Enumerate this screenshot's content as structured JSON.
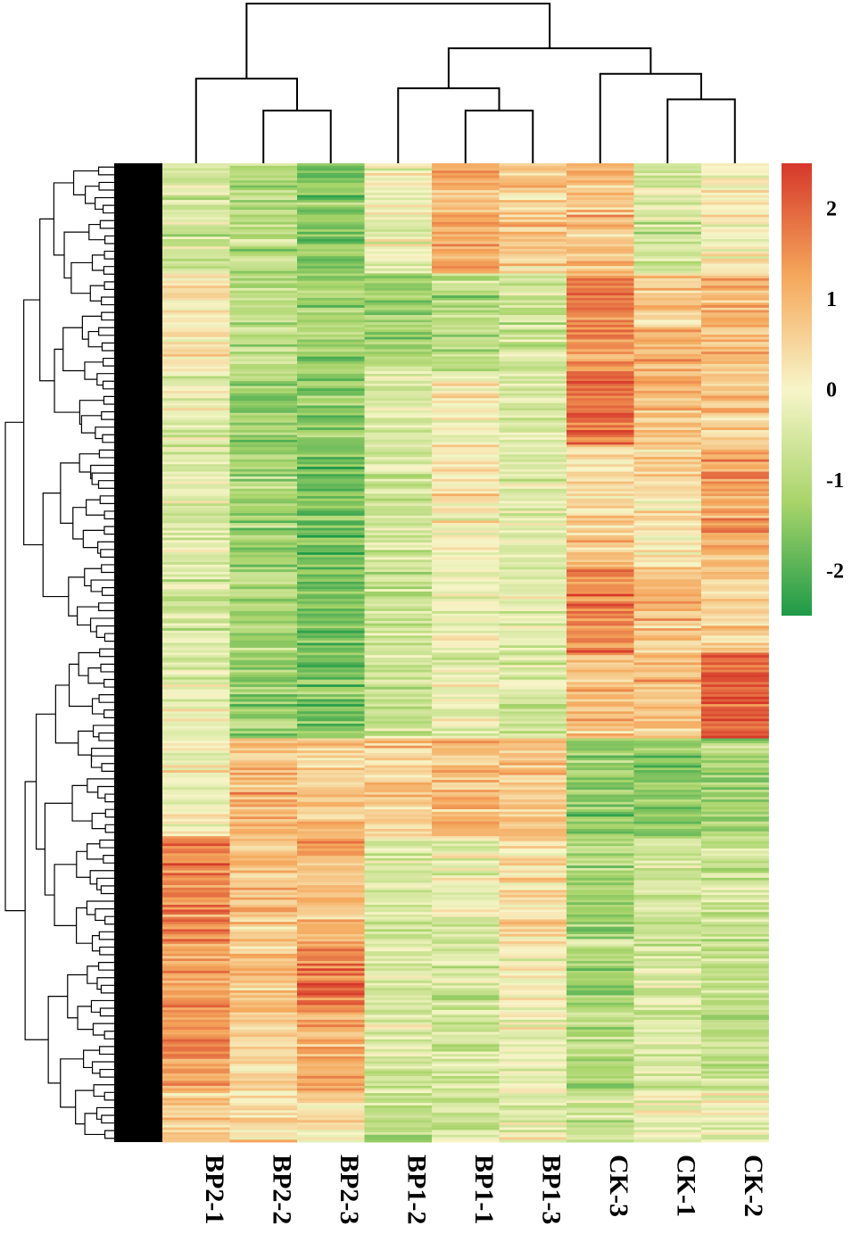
{
  "chart_data": {
    "type": "heatmap",
    "title": "",
    "columns": [
      "BP2-1",
      "BP2-2",
      "BP2-3",
      "BP1-2",
      "BP1-1",
      "BP1-3",
      "CK-3",
      "CK-1",
      "CK-2"
    ],
    "column_dendrogram": {
      "description": "hierarchical clustering of samples",
      "merges": [
        {
          "left": "BP2-2",
          "right": "BP2-3",
          "height": 0.33
        },
        {
          "left": "BP2-1",
          "right": "(BP2-2,BP2-3)",
          "height": 0.53
        },
        {
          "left": "BP1-1",
          "right": "BP1-3",
          "height": 0.33
        },
        {
          "left": "BP1-2",
          "right": "(BP1-1,BP1-3)",
          "height": 0.47
        },
        {
          "left": "CK-1",
          "right": "CK-2",
          "height": 0.4
        },
        {
          "left": "CK-3",
          "right": "(CK-1,CK-2)",
          "height": 0.56
        },
        {
          "left": "BP1 cluster",
          "right": "CK cluster",
          "height": 0.72
        },
        {
          "left": "BP2 cluster",
          "right": "BP1+CK cluster",
          "height": 1.0
        }
      ]
    },
    "row_blocks": [
      {
        "rows": "1-45",
        "values": [
          -0.5,
          -1.0,
          -1.6,
          -0.2,
          1.1,
          0.7,
          0.9,
          -0.6,
          0.1
        ]
      },
      {
        "rows": "46-85",
        "values": [
          0.4,
          -1.0,
          -1.3,
          -1.1,
          -1.0,
          -0.8,
          1.7,
          0.8,
          1.0
        ]
      },
      {
        "rows": "86-115",
        "values": [
          -0.4,
          -1.3,
          -1.5,
          -0.5,
          0.0,
          -0.5,
          1.9,
          0.8,
          0.6
        ]
      },
      {
        "rows": "116-165",
        "values": [
          -0.5,
          -1.2,
          -1.8,
          -0.6,
          0.2,
          -0.3,
          0.6,
          0.4,
          1.3
        ]
      },
      {
        "rows": "166-200",
        "values": [
          -0.6,
          -1.2,
          -1.6,
          -0.6,
          -0.2,
          -0.4,
          1.6,
          0.9,
          0.6
        ]
      },
      {
        "rows": "201-235",
        "values": [
          -0.3,
          -1.3,
          -1.6,
          -0.7,
          -0.3,
          -0.5,
          0.9,
          0.9,
          2.0
        ]
      },
      {
        "rows": "236-275",
        "values": [
          0.0,
          1.0,
          0.8,
          0.7,
          0.9,
          0.8,
          -1.4,
          -1.5,
          -1.2
        ]
      },
      {
        "rows": "276-320",
        "values": [
          1.6,
          0.7,
          1.0,
          -0.5,
          -0.4,
          0.4,
          -1.1,
          -0.7,
          -0.6
        ]
      },
      {
        "rows": "321-345",
        "values": [
          1.3,
          0.8,
          1.8,
          -0.4,
          -0.6,
          0.0,
          -1.2,
          -0.5,
          -0.8
        ]
      },
      {
        "rows": "346-380",
        "values": [
          1.5,
          0.6,
          1.1,
          -0.5,
          -0.6,
          -0.2,
          -1.0,
          -0.5,
          -0.7
        ]
      },
      {
        "rows": "381-400",
        "values": [
          0.6,
          0.3,
          0.4,
          -1.0,
          -0.6,
          -0.3,
          -0.6,
          -0.2,
          -0.1
        ]
      }
    ],
    "colorbar": {
      "range": [
        -2.5,
        2.5
      ],
      "ticks": [
        2,
        1,
        0,
        -1,
        -2
      ],
      "tick_labels": [
        "2",
        "1",
        "0",
        "-1",
        "-2"
      ],
      "colors": [
        "#1e9a48",
        "#f7f5c8",
        "#d6382a"
      ]
    },
    "row_dendrogram": "present on left (gene clustering, unlabeled)"
  }
}
